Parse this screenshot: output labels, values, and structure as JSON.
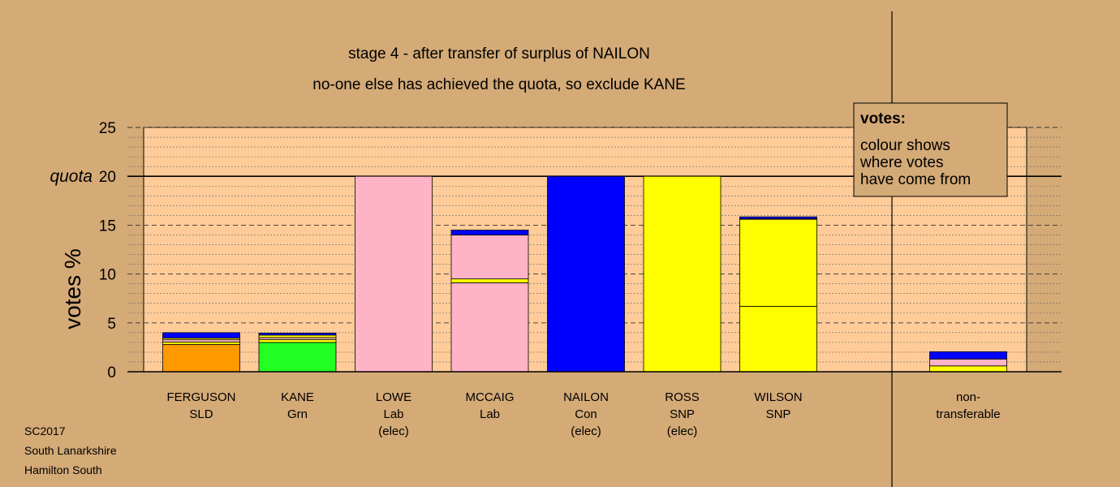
{
  "chart_data": {
    "type": "bar",
    "stacked": true,
    "title": "stage 4 - after transfer of surplus of NAILON",
    "subtitle": "no-one else has achieved the quota, so exclude KANE",
    "ylabel": "votes %",
    "ylim": [
      0,
      25
    ],
    "yticks": [
      "0",
      "5",
      "10",
      "15",
      "20",
      "25"
    ],
    "quota": {
      "label": "quota",
      "value": 20
    },
    "grid": true,
    "candidates": [
      {
        "lines": [
          "FERGUSON",
          "SLD"
        ],
        "segments": [
          {
            "value": 2.8,
            "color": "#ff9900"
          },
          {
            "value": 0.25,
            "color": "#ffff00"
          },
          {
            "value": 0.25,
            "color": "#ffb3c6"
          },
          {
            "value": 0.15,
            "color": "#ffff00"
          },
          {
            "value": 0.55,
            "color": "#0000ff"
          }
        ]
      },
      {
        "lines": [
          "KANE",
          "Grn"
        ],
        "segments": [
          {
            "value": 3.0,
            "color": "#22ff22"
          },
          {
            "value": 0.3,
            "color": "#ffff00"
          },
          {
            "value": 0.2,
            "color": "#ffb3c6"
          },
          {
            "value": 0.25,
            "color": "#ffff00"
          },
          {
            "value": 0.2,
            "color": "#0000ff"
          }
        ]
      },
      {
        "lines": [
          "LOWE",
          "Lab",
          "(elec)"
        ],
        "segments": [
          {
            "value": 20.0,
            "color": "#ffb3c6"
          }
        ]
      },
      {
        "lines": [
          "MCCAIG",
          "Lab"
        ],
        "segments": [
          {
            "value": 9.1,
            "color": "#ffb3c6"
          },
          {
            "value": 0.4,
            "color": "#ffff00"
          },
          {
            "value": 4.5,
            "color": "#ffb3c6"
          },
          {
            "value": 0.5,
            "color": "#0000ff"
          }
        ]
      },
      {
        "lines": [
          "NAILON",
          "Con",
          "(elec)"
        ],
        "segments": [
          {
            "value": 20.0,
            "color": "#0000ff"
          }
        ]
      },
      {
        "lines": [
          "ROSS",
          "SNP",
          "(elec)"
        ],
        "segments": [
          {
            "value": 20.0,
            "color": "#ffff00"
          }
        ]
      },
      {
        "lines": [
          "WILSON",
          "SNP"
        ],
        "segments": [
          {
            "value": 6.7,
            "color": "#ffff00"
          },
          {
            "value": 8.9,
            "color": "#ffff00"
          },
          {
            "value": 0.05,
            "color": "#ffb3c6"
          },
          {
            "value": 0.2,
            "color": "#0000ff"
          }
        ]
      }
    ],
    "nontransferable": {
      "lines": [
        "non-",
        "transferable"
      ],
      "segments": [
        {
          "value": 0.6,
          "color": "#ffff00"
        },
        {
          "value": 0.7,
          "color": "#ffb3c6"
        },
        {
          "value": 0.75,
          "color": "#0000ff"
        }
      ]
    },
    "legend": {
      "position": "top-right",
      "title": "votes:",
      "lines": [
        "colour shows",
        "where votes",
        "have come from"
      ]
    },
    "footer": [
      "SC2017",
      "South Lanarkshire",
      "Hamilton South"
    ],
    "colors": {
      "background": "#d4aa77",
      "plot_area": "#ffcc99"
    }
  }
}
